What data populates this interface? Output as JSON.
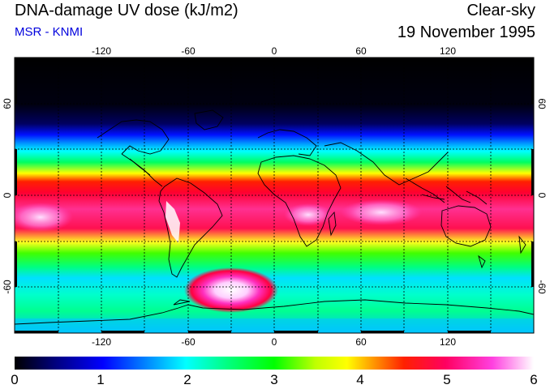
{
  "header": {
    "title": "DNA-damage UV dose (kJ/m2)",
    "subtitle": "MSR - KNMI",
    "condition": "Clear-sky",
    "date": "19 November 1995"
  },
  "map": {
    "lon_ticks": [
      "-120",
      "-60",
      "0",
      "60",
      "120"
    ],
    "lat_ticks_left": [
      "60",
      "0",
      "-60"
    ],
    "lat_ticks_right": [
      "60",
      "0",
      "-60"
    ],
    "lon_range": [
      -180,
      180
    ],
    "lat_range": [
      -90,
      90
    ],
    "grid": true
  },
  "colorbar": {
    "labels": [
      "0",
      "1",
      "2",
      "3",
      "4",
      "5",
      "6"
    ],
    "range": [
      0,
      6
    ],
    "colors": [
      "#000000",
      "#0000ff",
      "#00ffff",
      "#00ff00",
      "#ffff00",
      "#ff0000",
      "#ff00ff",
      "#ffffff"
    ]
  }
}
